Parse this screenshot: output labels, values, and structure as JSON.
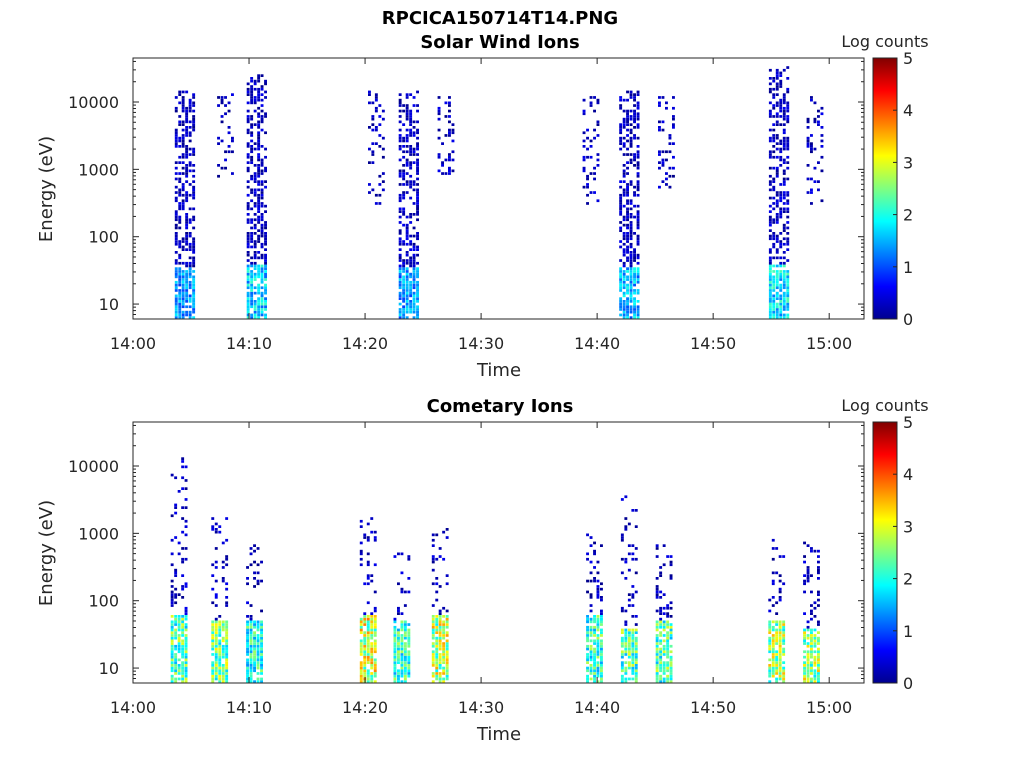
{
  "figure": {
    "title": "RPCICA150714T14.PNG",
    "colormap": "jet",
    "colors": {
      "axis": "#262626",
      "background": "#ffffff"
    }
  },
  "chart_data": [
    {
      "type": "heatmap",
      "title": "Solar Wind Ions",
      "xlabel": "Time",
      "ylabel": "Energy (eV)",
      "x_ticks": [
        "14:00",
        "14:10",
        "14:20",
        "14:30",
        "14:40",
        "14:50",
        "15:00"
      ],
      "y_ticks": [
        "10",
        "100",
        "1000",
        "10000"
      ],
      "yscale": "log",
      "xlim": [
        "14:00",
        "15:03"
      ],
      "ylim": [
        6,
        45000
      ],
      "colorbar": {
        "label": "Log counts",
        "ticks": [
          "0",
          "1",
          "2",
          "3",
          "4",
          "5"
        ],
        "range": [
          0,
          5
        ]
      },
      "scans": [
        {
          "time": "14:04.5",
          "emin": 6,
          "emax": 15000,
          "core_max": 35,
          "peak": 1.8,
          "dense": true
        },
        {
          "time": "14:08",
          "emin": 700,
          "emax": 15000,
          "core_max": 0,
          "peak": 0.3,
          "dense": false
        },
        {
          "time": "14:10.7",
          "emin": 6,
          "emax": 25000,
          "core_max": 40,
          "peak": 2.2,
          "dense": true
        },
        {
          "time": "14:21",
          "emin": 300,
          "emax": 15000,
          "core_max": 0,
          "peak": 0.3,
          "dense": false
        },
        {
          "time": "14:23.8",
          "emin": 6,
          "emax": 15000,
          "core_max": 35,
          "peak": 1.8,
          "dense": true
        },
        {
          "time": "14:27",
          "emin": 500,
          "emax": 15000,
          "core_max": 0,
          "peak": 0.3,
          "dense": false
        },
        {
          "time": "14:39.5",
          "emin": 300,
          "emax": 12000,
          "core_max": 0,
          "peak": 0.3,
          "dense": false
        },
        {
          "time": "14:42.8",
          "emin": 6,
          "emax": 15000,
          "core_max": 35,
          "peak": 2.0,
          "dense": true
        },
        {
          "time": "14:46",
          "emin": 500,
          "emax": 12000,
          "core_max": 0,
          "peak": 0.3,
          "dense": false
        },
        {
          "time": "14:55.7",
          "emin": 6,
          "emax": 35000,
          "core_max": 40,
          "peak": 2.3,
          "dense": true
        },
        {
          "time": "14:58.8",
          "emin": 300,
          "emax": 12000,
          "core_max": 0,
          "peak": 0.3,
          "dense": false
        }
      ]
    },
    {
      "type": "heatmap",
      "title": "Cometary Ions",
      "xlabel": "Time",
      "ylabel": "Energy (eV)",
      "x_ticks": [
        "14:00",
        "14:10",
        "14:20",
        "14:30",
        "14:40",
        "14:50",
        "15:00"
      ],
      "y_ticks": [
        "10",
        "100",
        "1000",
        "10000"
      ],
      "yscale": "log",
      "xlim": [
        "14:00",
        "15:03"
      ],
      "ylim": [
        6,
        45000
      ],
      "colorbar": {
        "label": "Log counts",
        "ticks": [
          "0",
          "1",
          "2",
          "3",
          "4",
          "5"
        ],
        "range": [
          0,
          5
        ]
      },
      "scans": [
        {
          "time": "14:04",
          "emin": 6,
          "emax": 13000,
          "core_max": 60,
          "peak": 3.0,
          "dense": false
        },
        {
          "time": "14:07.5",
          "emin": 6,
          "emax": 1700,
          "core_max": 50,
          "peak": 3.2,
          "dense": false
        },
        {
          "time": "14:10.5",
          "emin": 6,
          "emax": 800,
          "core_max": 50,
          "peak": 2.7,
          "dense": false
        },
        {
          "time": "14:20.3",
          "emin": 6,
          "emax": 1700,
          "core_max": 60,
          "peak": 3.8,
          "dense": false
        },
        {
          "time": "14:23.2",
          "emin": 6,
          "emax": 500,
          "core_max": 50,
          "peak": 2.8,
          "dense": false
        },
        {
          "time": "14:26.5",
          "emin": 6,
          "emax": 1200,
          "core_max": 60,
          "peak": 3.6,
          "dense": false
        },
        {
          "time": "14:39.8",
          "emin": 6,
          "emax": 1000,
          "core_max": 60,
          "peak": 2.8,
          "dense": false
        },
        {
          "time": "14:42.8",
          "emin": 6,
          "emax": 3500,
          "core_max": 40,
          "peak": 3.0,
          "dense": false
        },
        {
          "time": "14:45.8",
          "emin": 6,
          "emax": 800,
          "core_max": 50,
          "peak": 3.0,
          "dense": false
        },
        {
          "time": "14:55.5",
          "emin": 6,
          "emax": 800,
          "core_max": 50,
          "peak": 3.5,
          "dense": false
        },
        {
          "time": "14:58.5",
          "emin": 6,
          "emax": 800,
          "core_max": 40,
          "peak": 3.5,
          "dense": false
        }
      ]
    }
  ]
}
